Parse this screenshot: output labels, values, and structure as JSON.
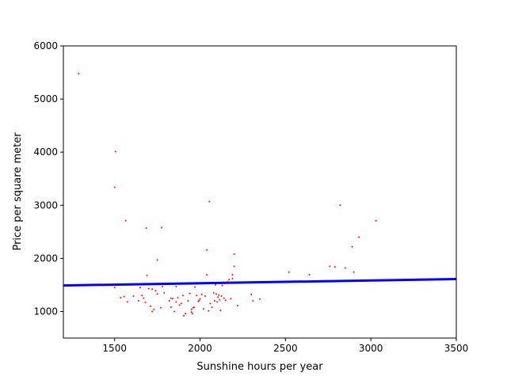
{
  "chart_data": {
    "type": "scatter",
    "title": "",
    "xlabel": "Sunshine hours per year",
    "ylabel": "Price per square meter",
    "xlim": [
      1200,
      3500
    ],
    "ylim": [
      500,
      6000
    ],
    "xticks": [
      "1500",
      "2000",
      "2500",
      "3000",
      "3500"
    ],
    "yticks": [
      "1000",
      "2000",
      "3000",
      "4000",
      "5000",
      "6000"
    ],
    "xtick_values": [
      1500,
      2000,
      2500,
      3000,
      3500
    ],
    "ytick_values": [
      1000,
      2000,
      3000,
      4000,
      5000,
      6000
    ],
    "grid": false,
    "legend": "none",
    "colors": {
      "points": "#ff0000",
      "fit_line": "#0000ff"
    },
    "series": [
      {
        "kind": "scatter",
        "points": [
          [
            1290,
            5480
          ],
          [
            1505,
            4010
          ],
          [
            1500,
            3340
          ],
          [
            1565,
            2710
          ],
          [
            1685,
            2570
          ],
          [
            1775,
            2580
          ],
          [
            1750,
            1970
          ],
          [
            2040,
            2160
          ],
          [
            2055,
            3070
          ],
          [
            2200,
            2080
          ],
          [
            1690,
            1680
          ],
          [
            2040,
            1690
          ],
          [
            2190,
            1690
          ],
          [
            2200,
            1850
          ],
          [
            2190,
            1620
          ],
          [
            1500,
            1450
          ],
          [
            1535,
            1260
          ],
          [
            1555,
            1280
          ],
          [
            1575,
            1180
          ],
          [
            1610,
            1290
          ],
          [
            1640,
            1200
          ],
          [
            1650,
            1450
          ],
          [
            1660,
            1300
          ],
          [
            1670,
            1250
          ],
          [
            1680,
            1170
          ],
          [
            1700,
            1430
          ],
          [
            1710,
            1100
          ],
          [
            1720,
            1420
          ],
          [
            1720,
            1000
          ],
          [
            1730,
            1040
          ],
          [
            1740,
            1390
          ],
          [
            1750,
            1330
          ],
          [
            1770,
            1070
          ],
          [
            1780,
            1470
          ],
          [
            1790,
            1350
          ],
          [
            1820,
            1200
          ],
          [
            1830,
            1250
          ],
          [
            1830,
            1080
          ],
          [
            1840,
            1240
          ],
          [
            1850,
            1000
          ],
          [
            1860,
            1470
          ],
          [
            1860,
            1180
          ],
          [
            1870,
            1260
          ],
          [
            1880,
            1120
          ],
          [
            1890,
            1150
          ],
          [
            1900,
            1300
          ],
          [
            1905,
            920
          ],
          [
            1915,
            960
          ],
          [
            1930,
            1200
          ],
          [
            1940,
            1340
          ],
          [
            1950,
            990
          ],
          [
            1950,
            1040
          ],
          [
            1955,
            960
          ],
          [
            1960,
            1070
          ],
          [
            1965,
            1080
          ],
          [
            1970,
            1460
          ],
          [
            1980,
            1300
          ],
          [
            1990,
            1190
          ],
          [
            1995,
            1210
          ],
          [
            2000,
            1240
          ],
          [
            2010,
            1320
          ],
          [
            2020,
            1050
          ],
          [
            2030,
            1290
          ],
          [
            2050,
            1010
          ],
          [
            2060,
            1150
          ],
          [
            2070,
            1080
          ],
          [
            2080,
            1350
          ],
          [
            2085,
            1200
          ],
          [
            2090,
            1500
          ],
          [
            2095,
            1330
          ],
          [
            2100,
            1180
          ],
          [
            2105,
            1270
          ],
          [
            2110,
            1310
          ],
          [
            2115,
            1220
          ],
          [
            2120,
            1020
          ],
          [
            2125,
            1290
          ],
          [
            2130,
            1490
          ],
          [
            2140,
            1250
          ],
          [
            2150,
            1210
          ],
          [
            2160,
            1560
          ],
          [
            2170,
            1600
          ],
          [
            2180,
            1240
          ],
          [
            2220,
            1110
          ],
          [
            2300,
            1320
          ],
          [
            2310,
            1200
          ],
          [
            2350,
            1230
          ],
          [
            2520,
            1740
          ],
          [
            2640,
            1690
          ],
          [
            2760,
            1850
          ],
          [
            2790,
            1840
          ],
          [
            2820,
            3000
          ],
          [
            2850,
            1820
          ],
          [
            2890,
            2220
          ],
          [
            2900,
            1740
          ],
          [
            2930,
            2400
          ],
          [
            3030,
            2710
          ]
        ]
      },
      {
        "kind": "line",
        "x": [
          1200,
          3500
        ],
        "y": [
          1490,
          1610
        ]
      }
    ]
  }
}
